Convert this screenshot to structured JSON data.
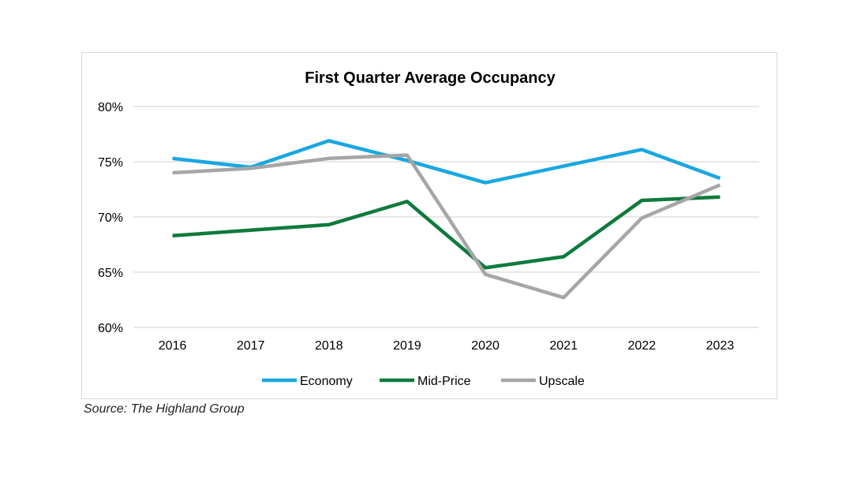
{
  "chart_data": {
    "type": "line",
    "title": "First Quarter Average Occupancy",
    "xlabel": "",
    "ylabel": "",
    "categories": [
      "2016",
      "2017",
      "2018",
      "2019",
      "2020",
      "2021",
      "2022",
      "2023"
    ],
    "ylim": [
      0.6,
      0.8
    ],
    "yticks": [
      0.6,
      0.65,
      0.7,
      0.75,
      0.8
    ],
    "ytick_labels": [
      "60%",
      "65%",
      "70%",
      "75%",
      "80%"
    ],
    "grid": "horizontal",
    "legend_position": "bottom",
    "series": [
      {
        "name": "Economy",
        "color": "#1aa7e0",
        "values": [
          0.753,
          0.745,
          0.769,
          0.751,
          0.731,
          0.746,
          0.761,
          0.735
        ]
      },
      {
        "name": "Mid-Price",
        "color": "#0e7a3c",
        "values": [
          0.683,
          0.688,
          0.693,
          0.714,
          0.654,
          0.664,
          0.715,
          0.718
        ]
      },
      {
        "name": "Upscale",
        "color": "#a6a6a6",
        "values": [
          0.74,
          0.744,
          0.753,
          0.756,
          0.648,
          0.627,
          0.699,
          0.729
        ]
      }
    ]
  },
  "source": "Source: The Highland Group"
}
